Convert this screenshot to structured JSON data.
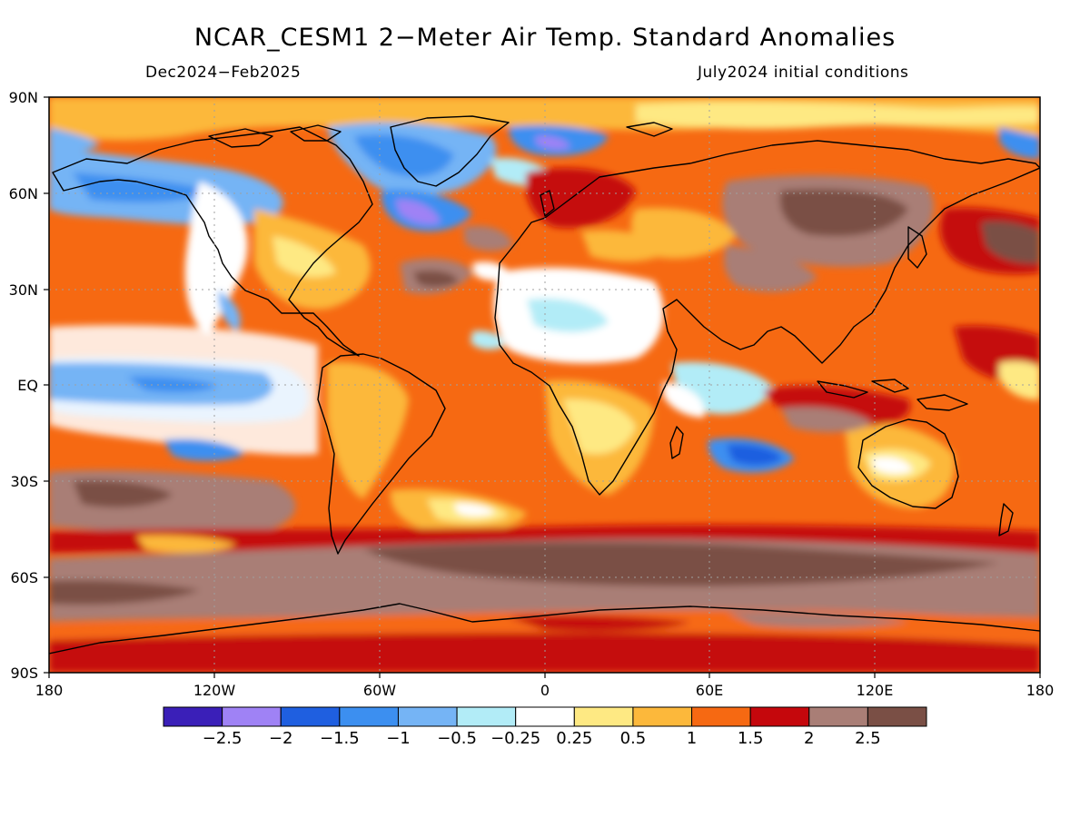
{
  "title": "NCAR_CESM1 2−Meter Air Temp. Standard Anomalies",
  "subtitle_left": "Dec2024−Feb2025",
  "subtitle_right": "July2024 initial conditions",
  "lat_labels": [
    "90N",
    "60N",
    "30N",
    "EQ",
    "30S",
    "60S",
    "90S"
  ],
  "lon_labels": [
    "180",
    "120W",
    "60W",
    "0",
    "60E",
    "120E",
    "180"
  ],
  "colorbar": {
    "colors": [
      "#3a1fb8",
      "#9f82f5",
      "#1f5fe0",
      "#3c8ff0",
      "#75b4f5",
      "#b2ecf7",
      "#ffffff",
      "#fee983",
      "#fcb83b",
      "#f66912",
      "#c5070c",
      "#a97e76",
      "#7a4f45"
    ],
    "labels": [
      "−2.5",
      "−2",
      "−1.5",
      "−1",
      "−0.5",
      "−0.25",
      "0.25",
      "0.5",
      "1",
      "1.5",
      "2",
      "2.5"
    ]
  },
  "colors": {
    "land_outline": "#000000",
    "grid": "#a0a0a0"
  }
}
